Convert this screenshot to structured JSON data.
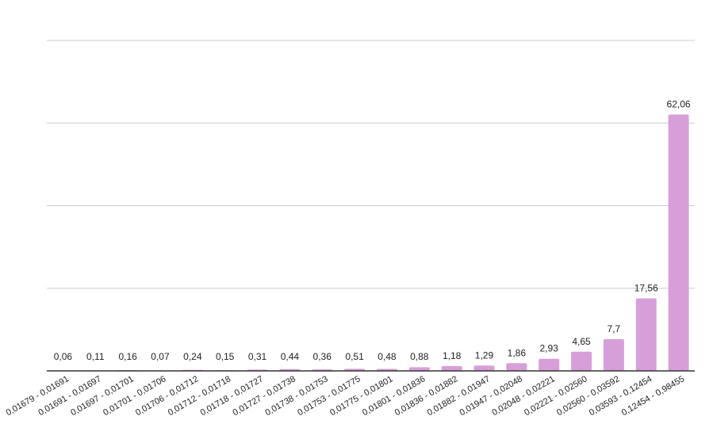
{
  "chart_data": {
    "type": "bar",
    "title": "",
    "xlabel": "",
    "ylabel": "",
    "ylim": [
      0,
      80
    ],
    "grid": true,
    "color": "#d79fd9",
    "categories": [
      "0,01679 - 0,01691",
      "0,01691 - 0,01697",
      "0,01697 - 0,01701",
      "0,01701 - 0,01706",
      "0,01706 - 0,01712",
      "0,01712 - 0,01718",
      "0,01718 - 0,01727",
      "0,01727 - 0,01738",
      "0,01738 - 0,01753",
      "0,01753 - 0,01775",
      "0,01775 - 0,01801",
      "0,01801 - 0,01836",
      "0,01836 - 0,01882",
      "0,01882 - 0,01947",
      "0,01947 - 0,02048",
      "0,02048 - 0,02221",
      "0,02221 - 0,02560",
      "0,02560 - 0,03592",
      "0,03593 - 0,12454",
      "0,12454 - 0,98455"
    ],
    "values": [
      0.06,
      0.11,
      0.16,
      0.07,
      0.24,
      0.15,
      0.31,
      0.44,
      0.36,
      0.51,
      0.48,
      0.88,
      1.18,
      1.29,
      1.86,
      2.93,
      4.65,
      7.7,
      17.56,
      62.06
    ],
    "value_labels": [
      "0,06",
      "0,11",
      "0,16",
      "0,07",
      "0,24",
      "0,15",
      "0,31",
      "0,44",
      "0,36",
      "0,51",
      "0,48",
      "0,88",
      "1,18",
      "1,29",
      "1,86",
      "2,93",
      "4,65",
      "7,7",
      "17,56",
      "62,06"
    ]
  }
}
